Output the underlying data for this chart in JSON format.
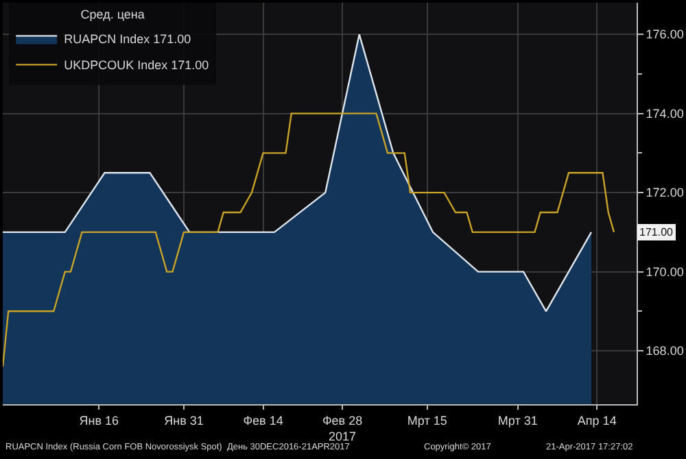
{
  "chart_data": {
    "type": "line",
    "legend_title": "Сред. цена",
    "legend": "top left",
    "grid": true,
    "xlim": [
      "2016-12-30",
      "2017-04-21"
    ],
    "xticks": [
      {
        "value": "2017-01-16",
        "label": "Янв 16"
      },
      {
        "value": "2017-01-31",
        "label": "Янв 31"
      },
      {
        "value": "2017-02-14",
        "label": "Фев 14"
      },
      {
        "value": "2017-02-28",
        "label": "Фев 28\n2017"
      },
      {
        "value": "2017-03-15",
        "label": "Мрт 15"
      },
      {
        "value": "2017-03-31",
        "label": "Мрт 31"
      },
      {
        "value": "2017-04-14",
        "label": "Апр 14"
      }
    ],
    "ylim": [
      166.65,
      176.8
    ],
    "yticks": [
      {
        "value": 168,
        "label": "168.00"
      },
      {
        "value": 169,
        "label": null
      },
      {
        "value": 170,
        "label": "170.00"
      },
      {
        "value": 171,
        "label": null
      },
      {
        "value": 172,
        "label": "172.00"
      },
      {
        "value": 173,
        "label": null
      },
      {
        "value": 174,
        "label": "174.00"
      },
      {
        "value": 175,
        "label": null
      },
      {
        "value": 176,
        "label": "176.00"
      }
    ],
    "series": [
      {
        "name": "RUAPCN Index 171.00",
        "type": "area",
        "color": "#dfe6ee",
        "x": [
          "2016-12-30",
          "2017-01-10",
          "2017-01-17",
          "2017-01-25",
          "2017-02-01",
          "2017-02-16",
          "2017-02-25",
          "2017-03-03",
          "2017-03-09",
          "2017-03-16",
          "2017-03-24",
          "2017-04-01",
          "2017-04-05",
          "2017-04-13"
        ],
        "values": [
          171,
          171,
          172.5,
          172.5,
          171,
          171,
          172,
          176,
          173,
          171,
          170,
          170,
          169,
          171
        ]
      },
      {
        "name": "UKDPCOUK Index 171.00",
        "color": "#c9a227",
        "x": [
          "2016-12-30",
          "2016-12-31",
          "2017-01-08",
          "2017-01-10",
          "2017-01-11",
          "2017-01-13",
          "2017-01-26",
          "2017-01-28",
          "2017-01-29",
          "2017-01-31",
          "2017-02-06",
          "2017-02-07",
          "2017-02-10",
          "2017-02-12",
          "2017-02-14",
          "2017-02-18",
          "2017-02-19",
          "2017-03-06",
          "2017-03-08",
          "2017-03-11",
          "2017-03-12",
          "2017-03-18",
          "2017-03-20",
          "2017-03-22",
          "2017-03-23",
          "2017-04-03",
          "2017-04-04",
          "2017-04-07",
          "2017-04-09",
          "2017-04-15",
          "2017-04-16",
          "2017-04-17"
        ],
        "values": [
          167.6,
          169,
          169,
          170,
          170,
          171,
          171,
          170,
          170,
          171,
          171,
          171.5,
          171.5,
          172,
          173,
          173,
          174,
          174,
          173,
          173,
          172,
          172,
          171.5,
          171.5,
          171,
          171,
          171.5,
          171.5,
          172.5,
          172.5,
          171.5,
          171
        ]
      }
    ],
    "annotations": [
      "171.00",
      "RUAPCN Index (Russia Corn FOB Novorossiysk Spot)  День 30DEC2016-21APR2017",
      "Copyright© 2017",
      "21-Apr-2017 17:27:02"
    ]
  }
}
